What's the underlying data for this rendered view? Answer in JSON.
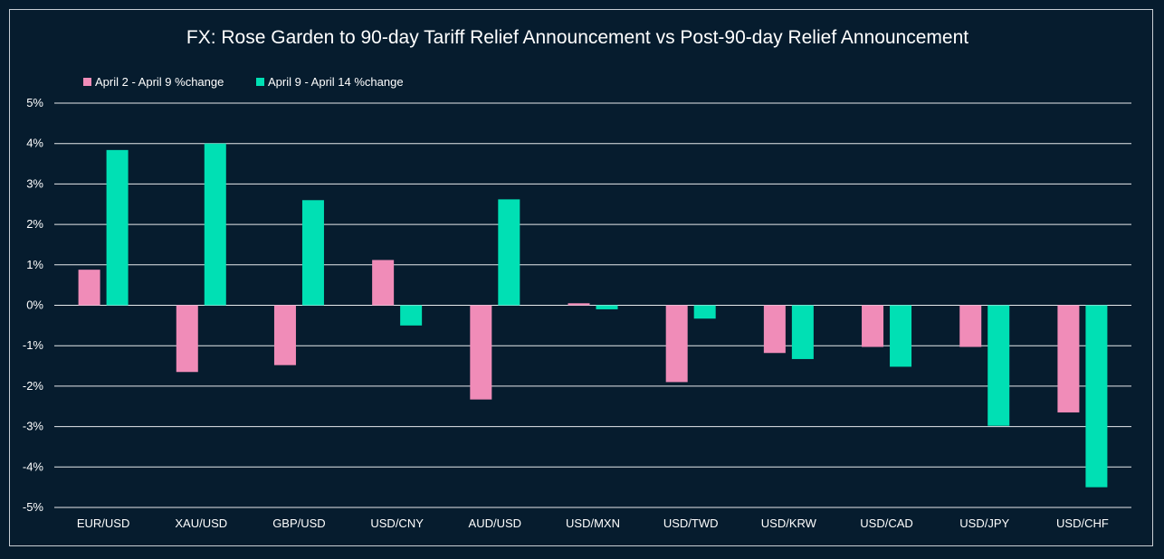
{
  "chart_data": {
    "type": "bar",
    "title": "FX: Rose Garden to 90-day Tariff Relief Announcement vs Post-90-day Relief Announcement",
    "xlabel": "",
    "ylabel": "",
    "ylim": [
      -5,
      5
    ],
    "y_ticks": [
      5,
      4,
      3,
      2,
      1,
      0,
      -1,
      -2,
      -3,
      -4,
      -5
    ],
    "y_tick_labels": [
      "5%",
      "4%",
      "3%",
      "2%",
      "1%",
      "0%",
      "-1%",
      "-2%",
      "-3%",
      "-4%",
      "-5%"
    ],
    "grid": true,
    "legend_position": "top-left",
    "categories": [
      "EUR/USD",
      "XAU/USD",
      "GBP/USD",
      "USD/CNY",
      "AUD/USD",
      "USD/MXN",
      "USD/TWD",
      "USD/KRW",
      "USD/CAD",
      "USD/JPY",
      "USD/CHF"
    ],
    "series": [
      {
        "name": "April 2 - April 9 %change",
        "color": "#f08cb8",
        "values": [
          0.88,
          -1.65,
          -1.48,
          1.12,
          -2.33,
          0.05,
          -1.9,
          -1.18,
          -1.03,
          -1.03,
          -2.65
        ]
      },
      {
        "name": "April 9 - April 14 %change",
        "color": "#00e0b4",
        "values": [
          3.84,
          4.0,
          2.6,
          -0.5,
          2.62,
          -0.1,
          -0.33,
          -1.33,
          -1.52,
          -2.98,
          -4.5
        ]
      }
    ]
  }
}
